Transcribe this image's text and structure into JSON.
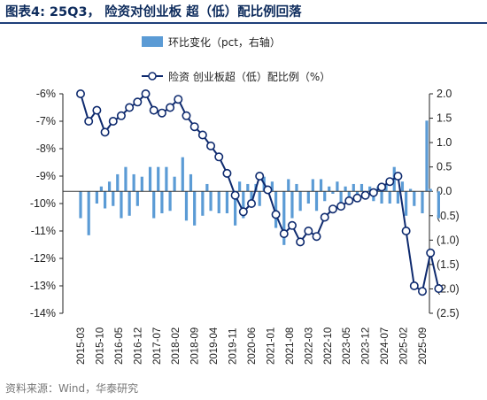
{
  "title": "图表4:  25Q3，  险资对创业板 超（低）配比例回落",
  "source": "资料来源：Wind，华泰研究",
  "colors": {
    "bar": "#5b9bd5",
    "line": "#0e2a6e",
    "title": "#0d2b5c",
    "rule": "#1f3f7a"
  },
  "chart_data": {
    "type": "bar+line",
    "legend": [
      {
        "label": "环比变化（pct，右轴）",
        "kind": "bar"
      },
      {
        "label": "险资 创业板超（低）配比例（%）",
        "kind": "line"
      }
    ],
    "left_axis": {
      "ticks": [
        "-6%",
        "-7%",
        "-8%",
        "-9%",
        "-10%",
        "-11%",
        "-12%",
        "-13%",
        "-14%"
      ],
      "range": [
        -14,
        -6
      ]
    },
    "right_axis": {
      "ticks": [
        "2.0",
        "1.5",
        "1.0",
        "0.5",
        "0.0",
        "(0.5)",
        "(1.0)",
        "(1.5)",
        "(2.0)",
        "(2.5)"
      ],
      "range": [
        -2.5,
        2.0
      ]
    },
    "x_tick_labels": [
      "2015-03",
      "2015-10",
      "2016-05",
      "2016-12",
      "2017-07",
      "2018-02",
      "2018-09",
      "2019-04",
      "2019-11",
      "2020-06",
      "2021-01",
      "2021-08",
      "2022-03",
      "2022-10",
      "2023-05",
      "2023-12",
      "2024-07",
      "2025-02",
      "2025-09"
    ],
    "x_tick_every": 7,
    "n_months": 127,
    "quarterly_ratio": [
      -6.0,
      -7.0,
      -6.6,
      -7.4,
      -7.0,
      -6.8,
      -6.5,
      -6.3,
      -6.0,
      -6.6,
      -6.7,
      -6.5,
      -6.2,
      -6.8,
      -7.2,
      -7.5,
      -7.9,
      -8.3,
      -8.9,
      -9.7,
      -10.3,
      -10.0,
      -9.0,
      -9.5,
      -10.4,
      -11.1,
      -10.8,
      -11.4,
      -11.0,
      -11.2,
      -10.5,
      -10.2,
      -10.1,
      -9.9,
      -9.8,
      -9.7,
      -9.6,
      -9.4,
      -9.2,
      -9.0,
      -11.0,
      -13.0,
      -13.2,
      -11.8,
      -13.1
    ],
    "bar_changes": [
      -0.55,
      -0.9,
      -0.25,
      -0.35,
      -0.3,
      -0.55,
      -0.5,
      -0.3,
      0.0,
      -0.55,
      -0.45,
      -0.4,
      0.0,
      -0.6,
      -0.7,
      -0.5,
      -0.4,
      -0.45,
      -0.45,
      -0.7,
      -0.55,
      -0.2,
      -0.3,
      0.0,
      -0.75,
      -1.1,
      -0.55,
      -0.4,
      -0.25,
      -0.4,
      -0.2,
      -0.05,
      -0.3,
      -0.2,
      -0.15,
      -0.1,
      -0.2,
      -0.25,
      -0.25,
      -0.25,
      -0.5,
      -0.3,
      -0.45,
      0.05,
      -0.55
    ],
    "bar_positive": [
      0.0,
      0.0,
      0.1,
      0.2,
      0.35,
      0.5,
      0.35,
      0.3,
      0.5,
      0.5,
      0.5,
      0.3,
      0.7,
      0.35,
      0.0,
      0.15,
      0.0,
      0.0,
      0.0,
      0.2,
      0.15,
      0.15,
      0.3,
      0.2,
      0.0,
      0.25,
      0.15,
      0.0,
      0.25,
      0.25,
      0.1,
      0.2,
      0.1,
      0.15,
      0.15,
      0.1,
      0.1,
      0.15,
      0.5,
      0.2,
      0.05,
      0.0,
      1.45,
      0.0,
      0.0
    ]
  }
}
